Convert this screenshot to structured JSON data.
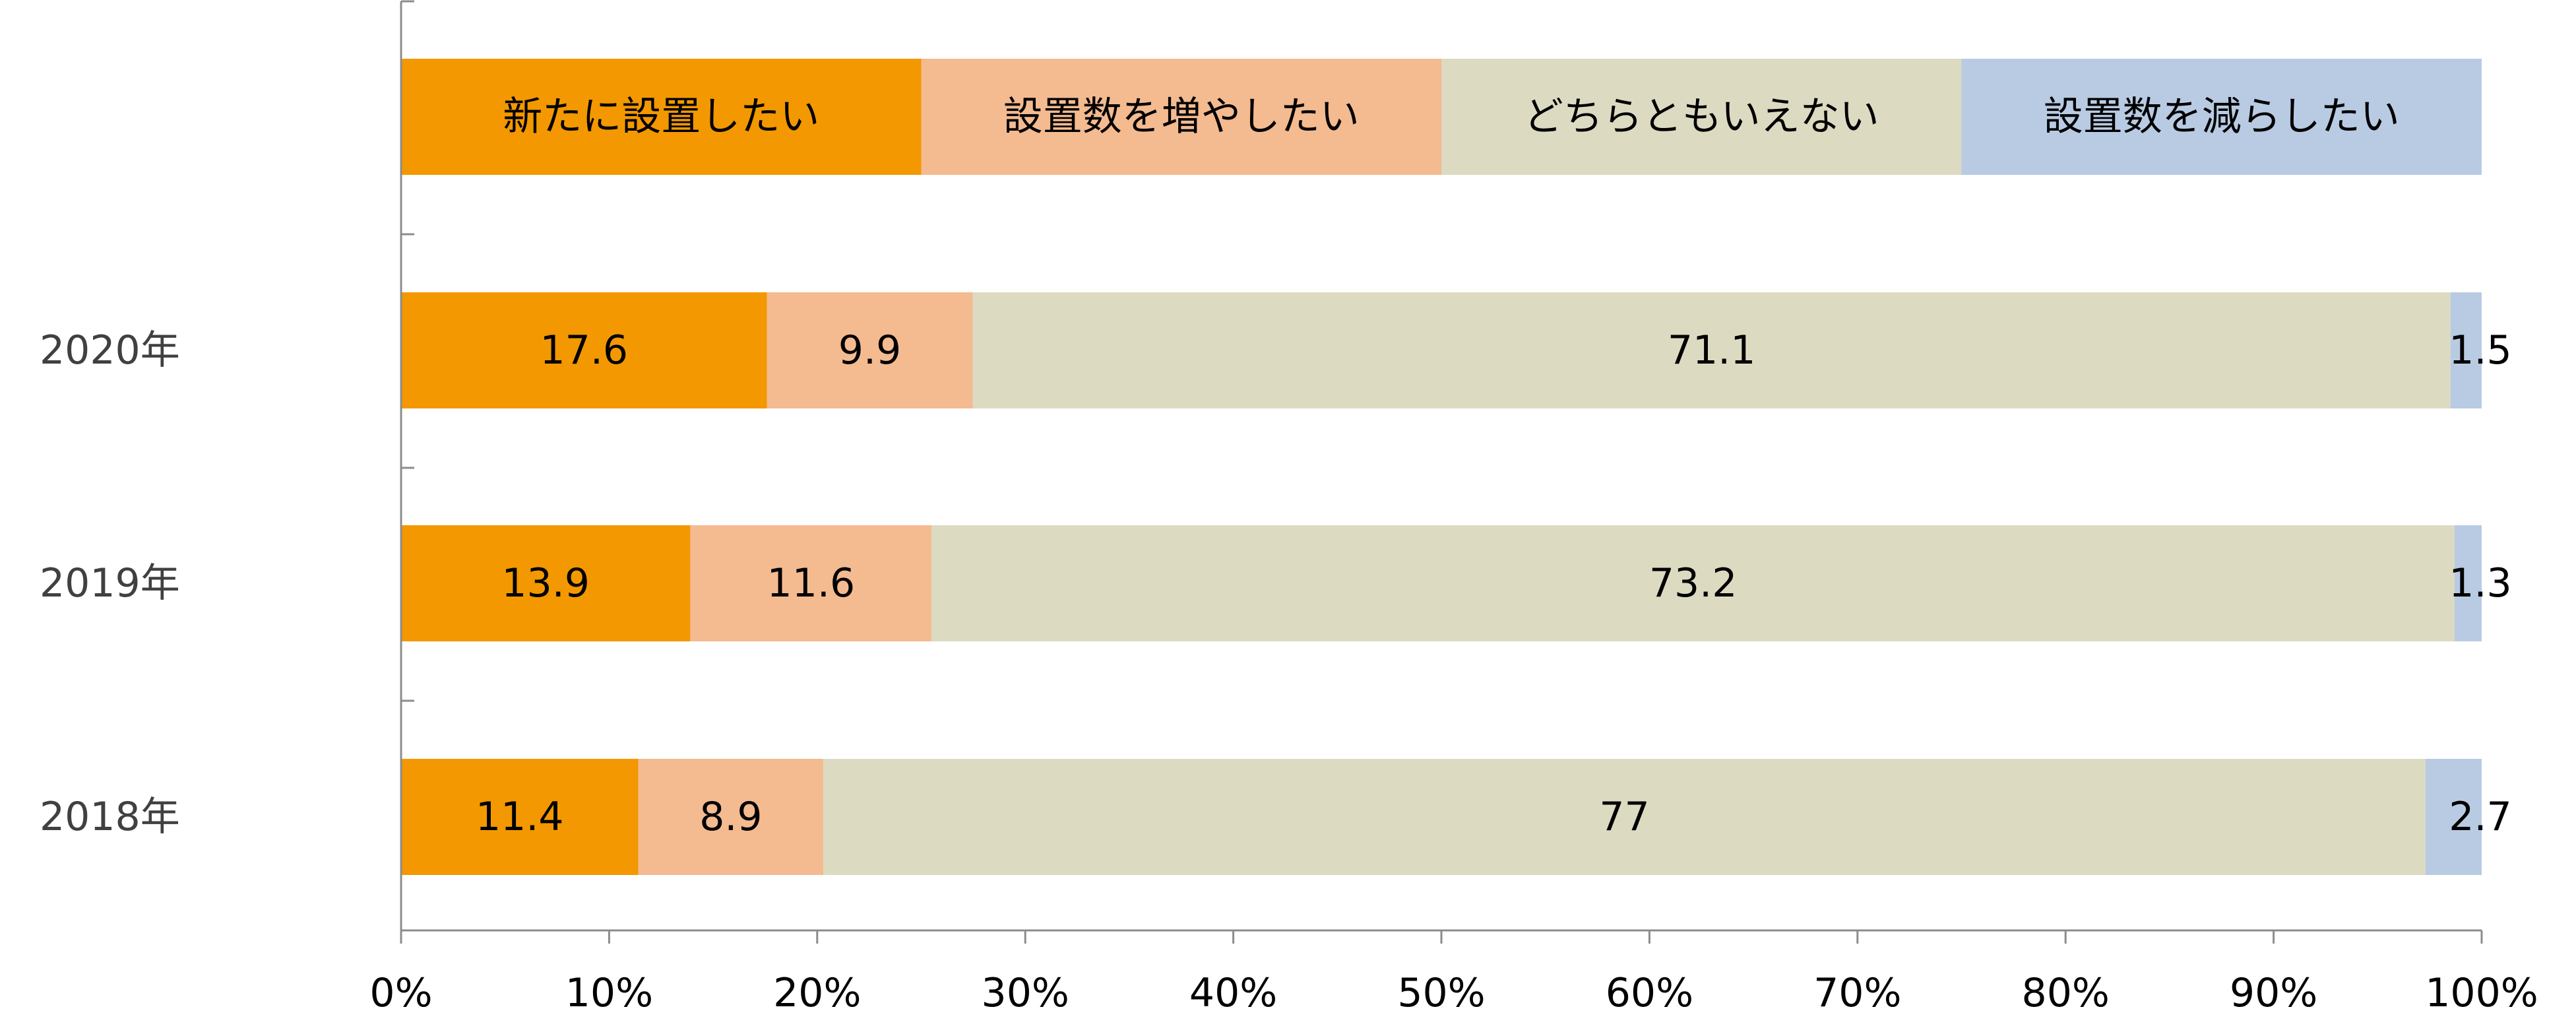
{
  "chart_data": {
    "type": "bar",
    "orientation": "horizontal",
    "stacked": "100%",
    "categories": [
      "2020年",
      "2019年",
      "2018年"
    ],
    "series": [
      {
        "name": "新たに設置したい",
        "color": "#F39800",
        "values": [
          17.6,
          13.9,
          11.4
        ]
      },
      {
        "name": "設置数を増やしたい",
        "color": "#F4BA90",
        "values": [
          9.9,
          11.6,
          8.9
        ]
      },
      {
        "name": "どちらともいえない",
        "color": "#DDDAC2",
        "values": [
          71.1,
          73.2,
          77
        ]
      },
      {
        "name": "設置数を減らしたい",
        "color": "#B8CBE3",
        "values": [
          1.5,
          1.3,
          2.7
        ]
      }
    ],
    "xlim": [
      0,
      100
    ],
    "x_ticks": [
      "0%",
      "10%",
      "20%",
      "30%",
      "40%",
      "50%",
      "60%",
      "70%",
      "80%",
      "90%",
      "100%"
    ],
    "legend": "top, drawn as an equal-width stacked bar",
    "grid": false
  }
}
